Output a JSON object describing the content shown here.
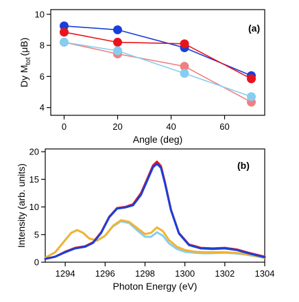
{
  "chart_data": [
    {
      "type": "line",
      "panel_label": "(a)",
      "xlabel": "Angle (deg)",
      "ylabel": "Dy M",
      "ylabel_sub": "tot",
      "ylabel_unit": "(μB)",
      "xlim": [
        -5,
        75
      ],
      "ylim": [
        3.5,
        10.3
      ],
      "xticks": [
        0,
        20,
        40,
        60
      ],
      "yticks": [
        4,
        6,
        8,
        10
      ],
      "grid": false,
      "legend": "none",
      "series": [
        {
          "color": "#1a3fd9",
          "x": [
            0,
            20,
            45,
            70
          ],
          "y": [
            9.25,
            9.0,
            7.85,
            6.05
          ],
          "markers": true
        },
        {
          "color": "#e8141c",
          "x": [
            0,
            20,
            45,
            70
          ],
          "y": [
            8.85,
            8.2,
            8.1,
            5.85
          ],
          "markers": true
        },
        {
          "color": "#f08080",
          "x": [
            0,
            20,
            45,
            70
          ],
          "y": [
            8.2,
            7.45,
            6.65,
            4.35
          ],
          "markers": true
        },
        {
          "color": "#87cdf0",
          "x": [
            0,
            20,
            45,
            70
          ],
          "y": [
            8.2,
            7.65,
            6.2,
            4.7
          ],
          "markers": true
        }
      ]
    },
    {
      "type": "line",
      "panel_label": "(b)",
      "xlabel": "Photon Energy (eV)",
      "ylabel": "Intensity (arb. units)",
      "xlim": [
        1293,
        1304
      ],
      "ylim": [
        0,
        20.5
      ],
      "xticks": [
        1294,
        1296,
        1298,
        1300,
        1302,
        1304
      ],
      "yticks": [
        0,
        5,
        10,
        15,
        20
      ],
      "grid": false,
      "legend": "none",
      "series": [
        {
          "color": "#87cdf0",
          "x": [
            1293,
            1293.5,
            1294,
            1294.3,
            1294.6,
            1294.9,
            1295.2,
            1295.6,
            1296.0,
            1296.4,
            1296.8,
            1297.2,
            1297.6,
            1298.0,
            1298.3,
            1298.6,
            1298.9,
            1299.2,
            1299.6,
            1300.0,
            1300.5,
            1301.0,
            1301.5,
            1302.0,
            1302.5,
            1303.0,
            1303.5,
            1304.0
          ],
          "y": [
            0.8,
            1.8,
            4.0,
            5.3,
            5.8,
            5.3,
            4.3,
            3.9,
            4.8,
            6.5,
            7.4,
            7.1,
            5.8,
            4.6,
            4.6,
            5.4,
            4.8,
            3.4,
            2.4,
            1.9,
            1.7,
            1.6,
            1.65,
            1.7,
            1.6,
            1.4,
            1.1,
            0.8
          ]
        },
        {
          "color": "#f0b432",
          "x": [
            1293,
            1293.5,
            1294,
            1294.3,
            1294.6,
            1294.9,
            1295.2,
            1295.6,
            1296.0,
            1296.4,
            1296.8,
            1297.2,
            1297.6,
            1298.0,
            1298.3,
            1298.6,
            1298.9,
            1299.2,
            1299.6,
            1300.0,
            1300.5,
            1301.0,
            1301.5,
            1302.0,
            1302.5,
            1303.0,
            1303.5,
            1304.0
          ],
          "y": [
            0.8,
            1.8,
            4.0,
            5.3,
            5.8,
            5.3,
            4.3,
            3.9,
            4.8,
            6.6,
            7.6,
            7.3,
            6.2,
            5.1,
            5.3,
            6.3,
            5.6,
            4.0,
            2.8,
            2.2,
            1.9,
            1.8,
            1.8,
            1.8,
            1.7,
            1.5,
            1.15,
            0.8
          ]
        },
        {
          "color": "#e8141c",
          "x": [
            1293,
            1293.5,
            1294,
            1294.5,
            1295.0,
            1295.4,
            1295.8,
            1296.2,
            1296.6,
            1297.0,
            1297.4,
            1297.8,
            1298.1,
            1298.4,
            1298.6,
            1298.8,
            1299.0,
            1299.3,
            1299.7,
            1300.2,
            1300.8,
            1301.4,
            1302.0,
            1302.6,
            1303.2,
            1304.0
          ],
          "y": [
            0.6,
            1.0,
            1.9,
            2.6,
            2.9,
            3.6,
            5.4,
            8.2,
            9.8,
            10.0,
            10.5,
            12.5,
            15.0,
            17.5,
            18.2,
            17.4,
            14.5,
            9.5,
            5.3,
            3.2,
            2.6,
            2.5,
            2.6,
            2.3,
            1.7,
            1.0
          ]
        },
        {
          "color": "#1a3fd9",
          "x": [
            1293,
            1293.5,
            1294,
            1294.5,
            1295.0,
            1295.4,
            1295.8,
            1296.2,
            1296.6,
            1297.0,
            1297.4,
            1297.8,
            1298.1,
            1298.4,
            1298.6,
            1298.8,
            1299.0,
            1299.3,
            1299.7,
            1300.2,
            1300.8,
            1301.4,
            1302.0,
            1302.6,
            1303.2,
            1304.0
          ],
          "y": [
            0.6,
            1.0,
            1.8,
            2.5,
            2.8,
            3.5,
            5.3,
            8.1,
            9.7,
            9.9,
            10.3,
            12.2,
            14.7,
            17.2,
            17.8,
            17.1,
            14.3,
            9.4,
            5.2,
            3.1,
            2.5,
            2.4,
            2.5,
            2.2,
            1.6,
            0.9
          ]
        }
      ]
    }
  ]
}
